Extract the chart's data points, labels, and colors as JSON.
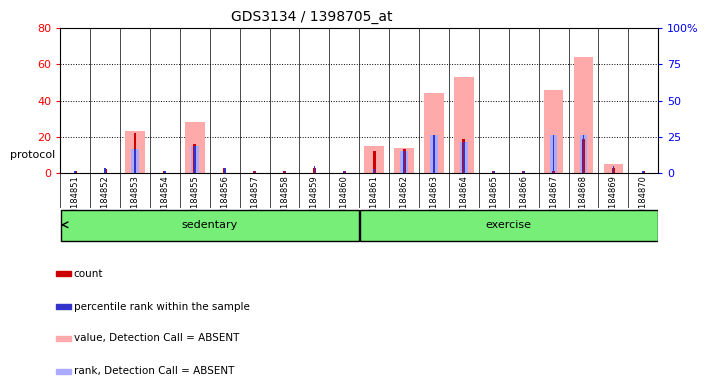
{
  "title": "GDS3134 / 1398705_at",
  "samples": [
    "GSM184851",
    "GSM184852",
    "GSM184853",
    "GSM184854",
    "GSM184855",
    "GSM184856",
    "GSM184857",
    "GSM184858",
    "GSM184859",
    "GSM184860",
    "GSM184861",
    "GSM184862",
    "GSM184863",
    "GSM184864",
    "GSM184865",
    "GSM184866",
    "GSM184867",
    "GSM184868",
    "GSM184869",
    "GSM184870"
  ],
  "count_values": [
    1,
    2,
    22,
    1,
    16,
    3,
    1,
    1,
    3,
    1,
    12,
    13,
    10,
    19,
    1,
    1,
    1,
    19,
    3,
    1
  ],
  "rank_values": [
    1,
    3,
    13,
    1,
    15,
    3,
    1,
    1,
    4,
    1,
    2,
    12,
    21,
    17,
    1,
    1,
    21,
    21,
    4,
    1
  ],
  "absent_value": [
    0,
    0,
    23,
    0,
    28,
    0,
    0,
    0,
    0,
    0,
    15,
    14,
    44,
    53,
    0,
    0,
    46,
    64,
    5,
    0
  ],
  "absent_rank": [
    0,
    0,
    13,
    0,
    15,
    0,
    0,
    0,
    0,
    0,
    0,
    12,
    21,
    17,
    0,
    0,
    21,
    21,
    0,
    0
  ],
  "ylim_left": [
    0,
    80
  ],
  "ylim_right": [
    0,
    100
  ],
  "yticks_left": [
    0,
    20,
    40,
    60,
    80
  ],
  "yticks_right": [
    0,
    25,
    50,
    75,
    100
  ],
  "ytick_labels_right": [
    "0",
    "25",
    "50",
    "75",
    "100%"
  ],
  "group1_label": "sedentary",
  "group2_label": "exercise",
  "group1_indices": [
    0,
    9
  ],
  "group2_indices": [
    10,
    19
  ],
  "protocol_label": "protocol",
  "count_color": "#cc0000",
  "rank_color": "#3333cc",
  "absent_value_color": "#ffaaaa",
  "absent_rank_color": "#aaaaff",
  "group_bg_color": "#77ee77",
  "xtick_bg_color": "#cccccc",
  "legend_items": [
    {
      "color": "#cc0000",
      "label": "count"
    },
    {
      "color": "#3333cc",
      "label": "percentile rank within the sample"
    },
    {
      "color": "#ffaaaa",
      "label": "value, Detection Call = ABSENT"
    },
    {
      "color": "#aaaaff",
      "label": "rank, Detection Call = ABSENT"
    }
  ]
}
